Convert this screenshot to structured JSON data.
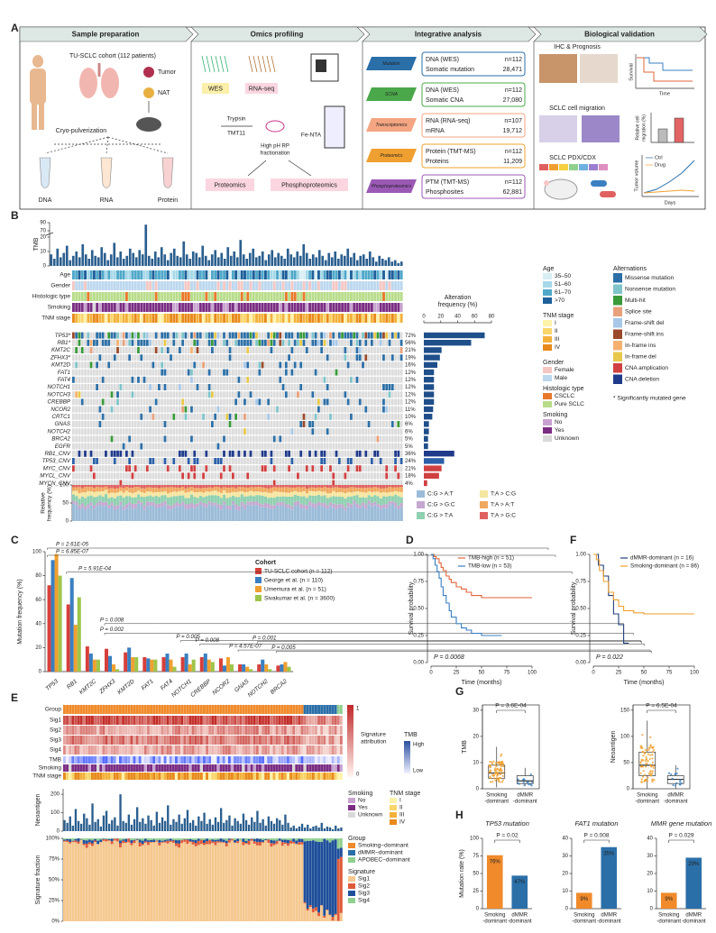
{
  "panel_labels": [
    "A",
    "B",
    "C",
    "D",
    "E",
    "F",
    "G",
    "H"
  ],
  "schematic": {
    "headers": [
      "Sample preparation",
      "Omics profiling",
      "Integrative analysis",
      "Biological validation"
    ],
    "sample": {
      "cohort": "TU-SCLC cohort (112 patients)",
      "tumor": "Tumor",
      "nat": "NAT",
      "cryo": "Cryo-pulverization",
      "tubes": [
        "DNA",
        "RNA",
        "Protein"
      ]
    },
    "omics": {
      "wes": "WES",
      "rnaseq": "RNA-seq",
      "trypsin": "Trypsin",
      "tmt": "TMT11",
      "fraction": [
        "High pH RP",
        "fractionation"
      ],
      "fenta": "Fe-NTA",
      "proteomics": "Proteomics",
      "phospho": "Phosphoproteomics"
    },
    "integrative": [
      {
        "tag": "Mutation",
        "assay": "DNA (WES)",
        "n": "n=112",
        "feature": "Somatic mutation",
        "count": "28,471",
        "color": "#2b6fa8"
      },
      {
        "tag": "SCNA",
        "assay": "DNA (WES)",
        "n": "n=112",
        "feature": "Somatic CNA",
        "count": "27,080",
        "color": "#4aa84a"
      },
      {
        "tag": "Transcriptomics",
        "assay": "RNA (RNA-seq)",
        "n": "n=107",
        "feature": "mRNA",
        "count": "19,712",
        "color": "#f4a582"
      },
      {
        "tag": "Proteomics",
        "assay": "Protein (TMT-MS)",
        "n": "n=112",
        "feature": "Proteins",
        "count": "11,209",
        "color": "#f0a030"
      },
      {
        "tag": "Phosphoproteomics",
        "assay": "PTM (TMT-MS)",
        "n": "n=112",
        "feature": "Phosphosites",
        "count": "62,881",
        "color": "#9b59b6"
      }
    ],
    "validation": {
      "ihc": "IHC & Prognosis",
      "survival": "Survival",
      "time": "Time",
      "migration": "SCLC cell migration",
      "migration_axis": [
        "Relative cell",
        "migration (%)"
      ],
      "pdx": "SCLC PDX/CDX",
      "ctrl": "Ctrl",
      "drug": "Drug",
      "volume": "Tumor volume",
      "days": "Days"
    }
  },
  "oncoprint": {
    "tracks": [
      "Age",
      "Gender",
      "Histologic type",
      "Smoking",
      "TNM stage"
    ],
    "note": "* Significantly mutated gene"
  },
  "legends": {
    "age": {
      "title": "Age",
      "items": [
        "35–50",
        "51–60",
        "61–70",
        ">70"
      ],
      "colors": [
        "#d8eef5",
        "#a6d8e8",
        "#4fa8c9",
        "#1f5f9a"
      ]
    },
    "gender": {
      "title": "Gender",
      "items": [
        "Female",
        "Male"
      ],
      "colors": [
        "#f4c7c3",
        "#bcd7ee"
      ]
    },
    "histologic": {
      "title": "Histologic type",
      "items": [
        "CSCLC",
        "Pure SCLC"
      ],
      "colors": [
        "#e8792b",
        "#b8dc8a"
      ]
    },
    "smoking": {
      "title": "Smoking",
      "items": [
        "No",
        "Yes",
        "Unknown"
      ],
      "colors": [
        "#c8a2d0",
        "#7b2d83",
        "#d9d9d9"
      ]
    },
    "tnm": {
      "title": "TNM stage",
      "items": [
        "I",
        "II",
        "III",
        "IV"
      ],
      "colors": [
        "#fdf2a8",
        "#f9d66a",
        "#f3b13a",
        "#e88a1a"
      ]
    },
    "alterations": {
      "title": "Alternations",
      "items": [
        "Missense mutation",
        "Nonsense mutation",
        "Multi-hit",
        "Splice site",
        "Frame-shift del",
        "Frame-shift ins",
        "In-frame ins",
        "In-frame del",
        "CNA amplication",
        "CNA deletion"
      ],
      "colors": [
        "#2c6fa6",
        "#7fc4c9",
        "#3a9a3a",
        "#e8a07a",
        "#a7c8e8",
        "#9a4a2a",
        "#f5b070",
        "#e8c84a",
        "#d04040",
        "#1f3a8a"
      ]
    },
    "mutation_types": {
      "items": [
        "C:G > A:T",
        "C:G > G:C",
        "C:G > T:A",
        "T:A > C:G",
        "T:A > A:T",
        "T:A > G:C"
      ],
      "colors": [
        "#9bbcd8",
        "#c4a8d0",
        "#8fd0b0",
        "#f5e6a0",
        "#f0a860",
        "#e06060"
      ]
    }
  },
  "heatmap_e": {
    "rows": [
      "Group",
      "Sig1",
      "Sig2",
      "Sig3",
      "Sig4",
      "TMB",
      "Smoking",
      "TNM stage"
    ],
    "attribution": {
      "title": [
        "Signature",
        "attribution"
      ],
      "high": 1,
      "low": 0
    },
    "tmb": {
      "title": "TMB",
      "high": "High",
      "low": "Low"
    },
    "smoking": {
      "title": "Smoking",
      "items": [
        "No",
        "Yes",
        "Unknown"
      ],
      "colors": [
        "#c8a2d0",
        "#7b2d83",
        "#d9d9d9"
      ]
    },
    "tnm": {
      "title": "TNM stage",
      "items": [
        "I",
        "II",
        "III",
        "IV"
      ],
      "colors": [
        "#fdf2a8",
        "#f9d66a",
        "#f3b13a",
        "#e88a1a"
      ]
    },
    "group": {
      "title": "Group",
      "items": [
        "Smoking−dominant",
        "dMMR−dominant",
        "APOBEC−dominant"
      ],
      "colors": [
        "#f08a2a",
        "#2b6fa8",
        "#8fd08f"
      ]
    },
    "signature": {
      "title": "Signature",
      "items": [
        "Sig1",
        "Sig2",
        "Sig3",
        "Sig4"
      ],
      "colors": [
        "#f5c88f",
        "#e05a3a",
        "#1f4f9a",
        "#8fd08f"
      ]
    }
  },
  "chart_data": [
    {
      "type": "bar",
      "ylabel": "TMB",
      "color": "#2b5f8f",
      "ylim": [
        0,
        90
      ],
      "yticks": [
        0,
        10,
        20,
        70,
        90
      ],
      "ybreak": [
        20,
        70
      ],
      "values": [
        8,
        5,
        12,
        6,
        9,
        14,
        4,
        7,
        10,
        6,
        15,
        8,
        5,
        11,
        7,
        6,
        13,
        9,
        4,
        8,
        16,
        6,
        10,
        5,
        7,
        12,
        9,
        6,
        11,
        8,
        85,
        7,
        5,
        10,
        6,
        13,
        8,
        4,
        9,
        12,
        7,
        6,
        17,
        8,
        5,
        10,
        9,
        6,
        14,
        7,
        4,
        8,
        11,
        6,
        9,
        5,
        13,
        7,
        10,
        6,
        18,
        8,
        5,
        9,
        12,
        6,
        7,
        10,
        4,
        8,
        11,
        6,
        9,
        7,
        5,
        12,
        8,
        6,
        10,
        7,
        15,
        9,
        5,
        8,
        6,
        11,
        7,
        4,
        9,
        6,
        10,
        5,
        8,
        7,
        12,
        6,
        9,
        4,
        7,
        8,
        5,
        10,
        6,
        3,
        7,
        5,
        4,
        6,
        3,
        4,
        2,
        3
      ]
    },
    {
      "type": "hbar",
      "title": [
        "Alteration",
        "frequency (%)"
      ],
      "xlim": [
        0,
        80
      ],
      "xticks": [
        0,
        20,
        40,
        60,
        80
      ],
      "categories": [
        "TP53*",
        "RB1*",
        "KMT2C",
        "ZFHX3*",
        "KMT2D",
        "FAT1",
        "FAT4",
        "NOTCH1",
        "NOTCH3",
        "CREBBP",
        "NCOR2",
        "CRTC1",
        "GNAS",
        "NOTCH2",
        "BRCA2",
        "EGFR",
        "RB1_CNV",
        "TP53_CNV",
        "MYC_CNV",
        "MYCL_CNV",
        "MYCN_CNV"
      ],
      "values": [
        72,
        56,
        21,
        19,
        16,
        12,
        12,
        12,
        12,
        12,
        11,
        10,
        6,
        6,
        5,
        5,
        36,
        24,
        21,
        18,
        4
      ],
      "value_labels": [
        "72%",
        "56%",
        "21%",
        "19%",
        "16%",
        "12%",
        "12%",
        "12%",
        "12%",
        "12%",
        "11%",
        "10%",
        "6%",
        "6%",
        "5%",
        "5%",
        "36%",
        "24%",
        "21%",
        "18%",
        "4%"
      ],
      "colors": [
        "#1f4f8a",
        "#1f4f8a",
        "#1f4f8a",
        "#1f4f8a",
        "#1f4f8a",
        "#1f4f8a",
        "#1f4f8a",
        "#1f4f8a",
        "#1f4f8a",
        "#1f4f8a",
        "#1f4f8a",
        "#1f4f8a",
        "#1f4f8a",
        "#1f4f8a",
        "#1f4f8a",
        "#1f4f8a",
        "#1f3a8a",
        "#2b5fa8",
        "#d04040",
        "#d04040",
        "#d04040"
      ]
    },
    {
      "type": "stacked_fraction",
      "ylabel": [
        "Relative",
        "frequency (%)"
      ],
      "ylim": [
        0,
        100
      ],
      "yticks": [
        0,
        50,
        100
      ]
    },
    {
      "type": "grouped_bar",
      "ylabel": "Mutation frequency (%)",
      "legend_title": "Cohort",
      "ylim": [
        0,
        100
      ],
      "yticks": [
        0,
        20,
        40,
        60,
        80,
        100
      ],
      "categories": [
        "TP53",
        "RB1",
        "KMT2C",
        "ZFHX3",
        "KMT2D",
        "FAT1",
        "FAT4",
        "NOTCH1",
        "CREBBP",
        "NCOR2",
        "GNAS",
        "NOTCH2",
        "BRCA2"
      ],
      "series": [
        {
          "name": "TU-SCLC cohort (n = 112)",
          "color": "#d7403a",
          "values": [
            72,
            56,
            21,
            19,
            16,
            12,
            12,
            12,
            12,
            11,
            6,
            6,
            5
          ]
        },
        {
          "name": "George et al. (n = 110)",
          "color": "#3a7fc1",
          "values": [
            93,
            78,
            15,
            13,
            20,
            11,
            15,
            15,
            15,
            5,
            6,
            10,
            6
          ]
        },
        {
          "name": "Umemura et al. (n = 51)",
          "color": "#f0a030",
          "values": [
            98,
            39,
            10,
            6,
            12,
            10,
            10,
            6,
            10,
            12,
            4,
            6,
            8
          ]
        },
        {
          "name": "Sivakumar et al. (n = 3600)",
          "color": "#9ec54a",
          "values": [
            80,
            62,
            10,
            2,
            12,
            10,
            4,
            10,
            8,
            6,
            2,
            2,
            4
          ]
        }
      ],
      "annotations": [
        "P = 2.61E-05",
        "P = 6.85E-07",
        "P = 5.91E-04",
        "P = 0.008",
        "P = 0.002",
        "P = 0.005",
        "P = 0.008",
        "P = 4.57E-07",
        "P = 0.001",
        "P = 0.005"
      ]
    },
    {
      "type": "step",
      "xlabel": "Time (months)",
      "ylabel": "Survival probability",
      "annotation": "P = 0.0068",
      "xlim": [
        0,
        100
      ],
      "xticks": [
        0,
        25,
        50,
        75,
        100
      ],
      "ylim": [
        0,
        1
      ],
      "yticks": [
        {
          "value": 0,
          "label": "0.00"
        },
        {
          "value": 0.25,
          "label": "0.25"
        },
        {
          "value": 0.5,
          "label": "0.50"
        },
        {
          "value": 0.75,
          "label": "0.75"
        },
        {
          "value": 1,
          "label": "1.00"
        }
      ],
      "series": [
        {
          "name": "TMB-high (n = 51)",
          "color": "#e0643a",
          "x": [
            0,
            3,
            5,
            8,
            10,
            12,
            15,
            18,
            20,
            25,
            30,
            35,
            40,
            50,
            60,
            100
          ],
          "y": [
            1,
            0.98,
            0.96,
            0.92,
            0.88,
            0.85,
            0.8,
            0.77,
            0.74,
            0.7,
            0.68,
            0.65,
            0.62,
            0.6,
            0.6,
            0.6
          ]
        },
        {
          "name": "TMB-low (n = 53)",
          "color": "#3a7fc1",
          "x": [
            0,
            2,
            4,
            6,
            8,
            10,
            12,
            15,
            18,
            20,
            25,
            30,
            35,
            40,
            50,
            70
          ],
          "y": [
            1,
            0.96,
            0.9,
            0.84,
            0.78,
            0.7,
            0.62,
            0.55,
            0.48,
            0.42,
            0.36,
            0.32,
            0.3,
            0.27,
            0.25,
            0.25
          ]
        }
      ]
    },
    {
      "type": "step",
      "xlabel": "Time (months)",
      "ylabel": "Survival probability",
      "annotation": "P = 0.022",
      "xlim": [
        0,
        100
      ],
      "xticks": [
        0,
        25,
        50,
        75,
        100
      ],
      "ylim": [
        0,
        1
      ],
      "yticks": [
        {
          "value": 0,
          "label": "0.00"
        },
        {
          "value": 0.25,
          "label": "0.25"
        },
        {
          "value": 0.5,
          "label": "0.50"
        },
        {
          "value": 0.75,
          "label": "0.75"
        },
        {
          "value": 1,
          "label": "1.00"
        }
      ],
      "series": [
        {
          "name": "dMMR-dominant (n = 16)",
          "color": "#1f3f7a",
          "x": [
            0,
            5,
            10,
            15,
            20,
            25,
            30,
            35
          ],
          "y": [
            1,
            0.9,
            0.8,
            0.62,
            0.45,
            0.35,
            0.18,
            0.18
          ]
        },
        {
          "name": "Smoking-dominant (n = 86)",
          "color": "#f0a030",
          "x": [
            0,
            3,
            6,
            10,
            15,
            20,
            25,
            30,
            40,
            50,
            60,
            75,
            100
          ],
          "y": [
            1,
            0.95,
            0.85,
            0.75,
            0.65,
            0.58,
            0.52,
            0.48,
            0.46,
            0.45,
            0.45,
            0.45,
            0.45
          ]
        }
      ]
    },
    {
      "type": "bar",
      "ylabel": "Neoantigen",
      "color": "#2b5f8f",
      "ylim": [
        0,
        230
      ],
      "yticks": [
        0,
        100,
        200
      ],
      "values": [
        60,
        45,
        80,
        30,
        120,
        55,
        40,
        95,
        70,
        35,
        150,
        50,
        65,
        25,
        85,
        110,
        40,
        60,
        75,
        30,
        200,
        55,
        45,
        90,
        35,
        65,
        130,
        50,
        70,
        40,
        85,
        60,
        30,
        105,
        45,
        75,
        55,
        140,
        35,
        65,
        50,
        90,
        40,
        70,
        115,
        45,
        60,
        30,
        80,
        55,
        100,
        40,
        65,
        35,
        75,
        50,
        125,
        45,
        60,
        85,
        30,
        70,
        55,
        40,
        95,
        60,
        35,
        75,
        50,
        110,
        45,
        65,
        30,
        80,
        55,
        40,
        70,
        60,
        35,
        90,
        45,
        20,
        30,
        15,
        25,
        40,
        20,
        35,
        15,
        25,
        30,
        20,
        45,
        15,
        25,
        20,
        10,
        30,
        15,
        20
      ]
    },
    {
      "type": "stacked_fraction",
      "ylabel": "Signature fraction",
      "ylim": [
        0,
        100
      ],
      "yticks": [
        {
          "value": 0,
          "label": "0%"
        },
        {
          "value": 25,
          "label": "25%"
        },
        {
          "value": 50,
          "label": "50%"
        },
        {
          "value": 75,
          "label": "75%"
        },
        {
          "value": 100,
          "label": "100%"
        }
      ]
    },
    {
      "type": "box",
      "ylabel": "TMB",
      "annotation": "P = 3.6E-04",
      "ylim": [
        0,
        32
      ],
      "yticks": [
        0,
        10,
        20,
        30
      ],
      "colors": [
        "#f0a030",
        "#3a7fc1"
      ],
      "categories": [
        [
          "Smoking",
          "-dominant"
        ],
        [
          "dMMR",
          "-dominant"
        ]
      ],
      "boxes": [
        {
          "min": 0.5,
          "q1": 4,
          "median": 6,
          "q3": 9,
          "max": 16
        },
        {
          "min": 1,
          "q1": 2,
          "median": 3,
          "q3": 5,
          "max": 8
        }
      ]
    },
    {
      "type": "box",
      "ylabel": "Neoantigen",
      "annotation": "P = 6.5E-04",
      "ylim": [
        0,
        160
      ],
      "yticks": [
        0,
        50,
        100,
        150
      ],
      "colors": [
        "#f0a030",
        "#3a7fc1"
      ],
      "categories": [
        [
          "Smoking",
          "-dominant"
        ],
        [
          "dMMR",
          "-dominant"
        ]
      ],
      "boxes": [
        {
          "min": 0,
          "q1": 25,
          "median": 45,
          "q3": 70,
          "max": 130
        },
        {
          "min": 0,
          "q1": 10,
          "median": 18,
          "q3": 25,
          "max": 45
        }
      ]
    },
    {
      "type": "bar",
      "title": "TP53 mutation",
      "ylabel": "Mutation rate (%)",
      "annotation": "P = 0.02",
      "ylim": [
        0,
        100
      ],
      "yticks": [
        0,
        25,
        50,
        75,
        100
      ],
      "categories": [
        [
          "Smoking",
          "-dominant"
        ],
        [
          "dMMR",
          "-dominant"
        ]
      ],
      "values": [
        76,
        47
      ],
      "value_labels": [
        "76%",
        "47%"
      ],
      "colors": [
        "#f08a2a",
        "#2b6fa8"
      ]
    },
    {
      "type": "bar",
      "title": "FAT1 mutation",
      "annotation": "P = 0.008",
      "ylim": [
        0,
        40
      ],
      "yticks": [
        0,
        10,
        20,
        30,
        40
      ],
      "categories": [
        [
          "Smoking",
          "-dominant"
        ],
        [
          "dMMR",
          "-dominant"
        ]
      ],
      "values": [
        9,
        35
      ],
      "value_labels": [
        "9%",
        "35%"
      ],
      "colors": [
        "#f08a2a",
        "#2b6fa8"
      ]
    },
    {
      "type": "bar",
      "title": "MMR gene mutation",
      "annotation": "P = 0.029",
      "ylim": [
        0,
        40
      ],
      "yticks": [
        0,
        10,
        20,
        30,
        40
      ],
      "categories": [
        [
          "Smoking",
          "-dominant"
        ],
        [
          "dMMR",
          "-dominant"
        ]
      ],
      "values": [
        9,
        29
      ],
      "value_labels": [
        "9%",
        "29%"
      ],
      "colors": [
        "#f08a2a",
        "#2b6fa8"
      ]
    }
  ]
}
